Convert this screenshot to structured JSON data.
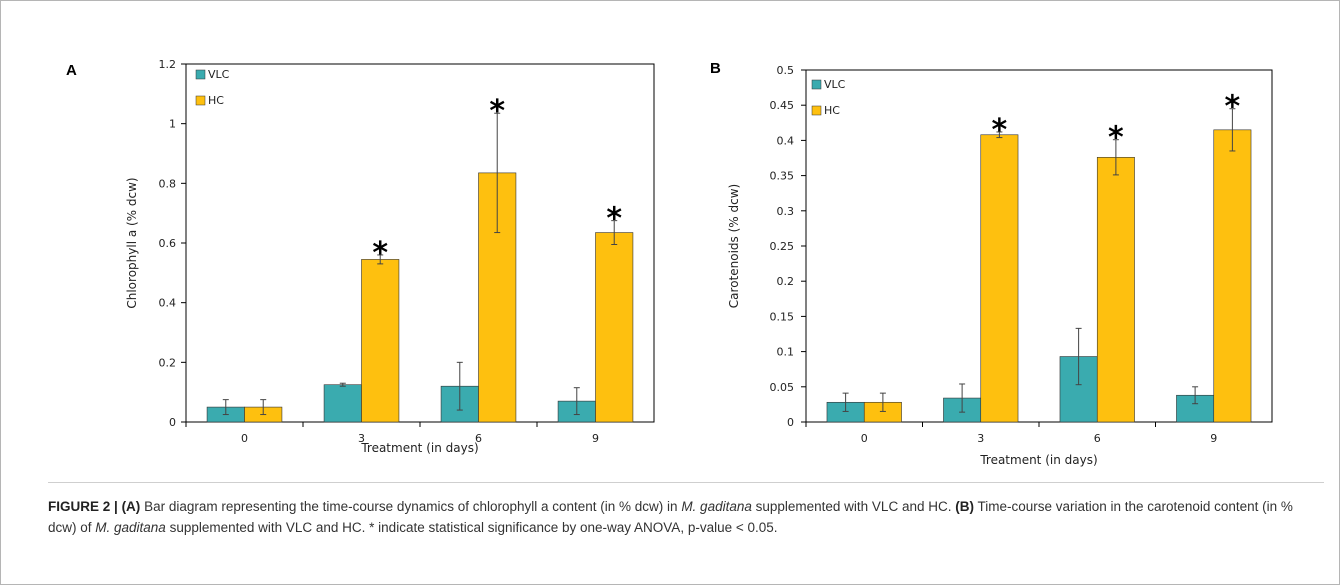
{
  "figure": {
    "caption": {
      "label": "FIGURE 2 |",
      "a_tag": "(A)",
      "a_text_1": " Bar diagram representing the time-course dynamics of chlorophyll a content (in % dcw) in ",
      "species": "M. gaditana",
      "a_text_2": " supplemented with VLC and HC. ",
      "b_tag": "(B)",
      "b_text_1": " Time-course variation in the carotenoid content (in % dcw) of ",
      "b_text_2": " supplemented with VLC and HC. * indicate statistical significance by one-way ANOVA, p-value < 0.05."
    }
  },
  "colors": {
    "VLC": "#3aabaf",
    "HC": "#fec00f",
    "axis": "#000000",
    "error": "#444444"
  },
  "chart_data": [
    {
      "panel": "A",
      "type": "bar",
      "xlabel": "Treatment (in days)",
      "ylabel": "Chlorophyll a (% dcw)",
      "categories": [
        "0",
        "3",
        "6",
        "9"
      ],
      "ylim": [
        0,
        1.2
      ],
      "yticks": [
        "0",
        "0.2",
        "0.4",
        "0.6",
        "0.8",
        "1",
        "1.2"
      ],
      "ytick_values": [
        0,
        0.2,
        0.4,
        0.6,
        0.8,
        1,
        1.2
      ],
      "grid": false,
      "legend_position": "top-left",
      "significance_marker": "*",
      "series": [
        {
          "name": "VLC",
          "values": [
            0.05,
            0.125,
            0.12,
            0.07
          ],
          "errors": [
            0.025,
            0.005,
            0.08,
            0.045
          ]
        },
        {
          "name": "HC",
          "values": [
            0.05,
            0.545,
            0.835,
            0.635
          ],
          "errors": [
            0.025,
            0.015,
            0.2,
            0.04
          ]
        }
      ],
      "significant": [
        false,
        true,
        true,
        true
      ]
    },
    {
      "panel": "B",
      "type": "bar",
      "xlabel": "Treatment (in days)",
      "ylabel": "Carotenoids (% dcw)",
      "categories": [
        "0",
        "3",
        "6",
        "9"
      ],
      "ylim": [
        0,
        0.5
      ],
      "yticks": [
        "0",
        "0.05",
        "0.1",
        "0.15",
        "0.2",
        "0.25",
        "0.3",
        "0.35",
        "0.4",
        "0.45",
        "0.5"
      ],
      "ytick_values": [
        0,
        0.05,
        0.1,
        0.15,
        0.2,
        0.25,
        0.3,
        0.35,
        0.4,
        0.45,
        0.5
      ],
      "grid": false,
      "legend_position": "top-left",
      "significance_marker": "*",
      "series": [
        {
          "name": "VLC",
          "values": [
            0.028,
            0.034,
            0.093,
            0.038
          ],
          "errors": [
            0.013,
            0.02,
            0.04,
            0.012
          ]
        },
        {
          "name": "HC",
          "values": [
            0.028,
            0.408,
            0.376,
            0.415
          ],
          "errors": [
            0.013,
            0.004,
            0.025,
            0.03
          ]
        }
      ],
      "significant": [
        false,
        true,
        true,
        true
      ]
    }
  ]
}
